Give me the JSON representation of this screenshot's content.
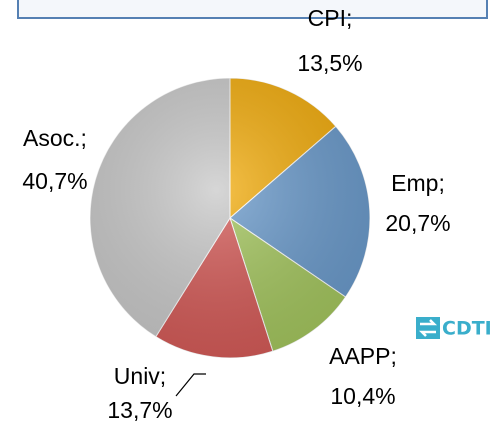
{
  "chart_data": {
    "type": "pie",
    "categories": [
      "CPI;",
      "Emp;",
      "AAPP;",
      "Univ;",
      "Asoc.;"
    ],
    "values": [
      13.5,
      20.7,
      10.4,
      13.7,
      40.7
    ],
    "value_labels": [
      "13,5%",
      "20,7%",
      "10,4%",
      "13,7%",
      "40,7%"
    ],
    "colors": [
      "#f2ac0c",
      "#6a9acb",
      "#a4c65e",
      "#d45a57",
      "#c9c9c9"
    ]
  },
  "logo": "CDTI"
}
